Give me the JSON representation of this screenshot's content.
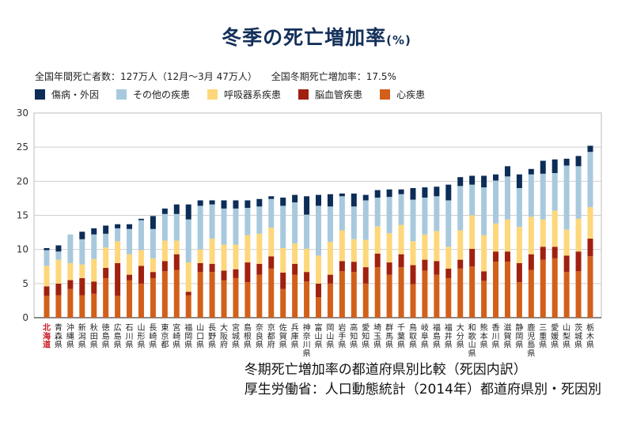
{
  "header": {
    "title": "冬季の死亡増加率",
    "title_unit": "(%)",
    "stat_deaths": "全国年間死亡者数：127万人（12月～3月 47万人）",
    "stat_increase": "全国冬期死亡増加率：17.5%"
  },
  "footer": {
    "line1": "冬期死亡増加率の都道府県別比較（死因内訳）",
    "line2": "厚生労働省：人口動態統計（2014年）都道府県別・死因別"
  },
  "chart_data": {
    "type": "bar",
    "stacked": true,
    "title": "冬季の死亡増加率(%)",
    "xlabel": "",
    "ylabel": "",
    "ylim": [
      0,
      30
    ],
    "yticks": [
      0,
      5,
      10,
      15,
      20,
      25,
      30
    ],
    "grid": true,
    "highlight_category": "北海道",
    "highlight_color": "#c8161d",
    "categories": [
      "北海道",
      "青森県",
      "沖縄県",
      "新潟県",
      "秋田県",
      "徳島県",
      "広島県",
      "石川県",
      "山形県",
      "長崎県",
      "東京都",
      "宮崎県",
      "福岡県",
      "山口県",
      "長野県",
      "大阪府",
      "宮城県",
      "島根県",
      "奈良県",
      "京都府",
      "佐賀県",
      "兵庫県",
      "神奈川県",
      "富山県",
      "岡山県",
      "岩手県",
      "高知県",
      "愛知県",
      "埼玉県",
      "群馬県",
      "千葉県",
      "鳥取県",
      "岐阜県",
      "福島県",
      "福井県",
      "大分県",
      "和歌山県",
      "熊本県",
      "香川県",
      "滋賀県",
      "静岡県",
      "鹿児島県",
      "三重県",
      "愛媛県",
      "山梨県",
      "茨城県",
      "栃木県"
    ],
    "series": [
      {
        "name": "心疾患",
        "color": "#d2601a",
        "values": [
          3.2,
          3.3,
          4.2,
          3.3,
          3.5,
          5.8,
          3.2,
          5.5,
          5.0,
          5.8,
          6.8,
          7.0,
          3.3,
          6.7,
          6.7,
          5.5,
          5.8,
          5.2,
          6.3,
          7.2,
          4.2,
          6.3,
          5.3,
          3.0,
          5.0,
          6.8,
          6.7,
          5.0,
          7.4,
          6.3,
          7.4,
          4.9,
          6.9,
          6.3,
          5.8,
          7.2,
          7.5,
          5.4,
          8.2,
          8.2,
          5.2,
          7.0,
          8.5,
          8.7,
          6.7,
          6.8,
          9.0
        ]
      },
      {
        "name": "脳血管疾患",
        "color": "#a0210f",
        "values": [
          1.4,
          1.7,
          1.3,
          2.5,
          1.8,
          1.5,
          4.8,
          0.8,
          2.6,
          0.9,
          1.5,
          2.3,
          0.5,
          1.3,
          1.2,
          1.4,
          1.3,
          2.9,
          1.6,
          1.8,
          2.4,
          1.6,
          1.4,
          2.0,
          1.3,
          1.5,
          1.5,
          2.4,
          2.0,
          1.8,
          1.9,
          2.8,
          1.6,
          2.0,
          1.4,
          1.3,
          2.6,
          1.4,
          1.5,
          1.5,
          2.8,
          2.3,
          1.9,
          1.7,
          2.4,
          2.9,
          2.6
        ]
      },
      {
        "name": "呼吸器系疾患",
        "color": "#fdd77a",
        "values": [
          3.0,
          3.5,
          2.5,
          2.0,
          3.3,
          3.0,
          3.2,
          3.0,
          2.3,
          2.0,
          3.0,
          2.0,
          4.3,
          2.0,
          3.7,
          3.8,
          3.6,
          4.0,
          4.4,
          4.2,
          3.6,
          3.0,
          3.4,
          4.1,
          4.8,
          4.5,
          3.3,
          4.0,
          4.0,
          4.3,
          4.3,
          3.5,
          3.7,
          4.4,
          3.2,
          4.3,
          4.9,
          5.3,
          4.1,
          4.7,
          5.3,
          5.5,
          4.0,
          5.3,
          3.8,
          4.8,
          4.6
        ]
      },
      {
        "name": "その他の疾患",
        "color": "#a8c9dd",
        "values": [
          2.3,
          1.2,
          4.2,
          3.7,
          3.6,
          2.0,
          1.9,
          3.7,
          4.4,
          4.3,
          3.9,
          3.9,
          6.3,
          6.4,
          5.0,
          5.3,
          5.3,
          4.0,
          4.0,
          4.2,
          6.2,
          6.0,
          5.0,
          7.3,
          5.2,
          5.0,
          4.8,
          5.8,
          4.2,
          5.3,
          4.5,
          6.1,
          5.4,
          5.1,
          6.8,
          6.5,
          4.5,
          7.0,
          6.3,
          6.3,
          5.7,
          6.2,
          6.7,
          5.5,
          9.4,
          7.7,
          8.1
        ]
      },
      {
        "name": "傷病・外因",
        "color": "#0c2d57",
        "values": [
          0.3,
          0.9,
          0.0,
          1.1,
          0.9,
          1.2,
          0.6,
          0.7,
          0.2,
          1.9,
          0.8,
          1.4,
          2.2,
          0.8,
          0.6,
          1.2,
          1.2,
          1.1,
          1.1,
          0.4,
          1.2,
          1.1,
          2.7,
          1.6,
          1.8,
          0.4,
          1.9,
          0.8,
          1.1,
          1.1,
          0.7,
          1.7,
          1.5,
          1.4,
          2.3,
          1.3,
          1.3,
          1.7,
          0.9,
          1.5,
          2.0,
          0.8,
          1.9,
          2.0,
          1.0,
          1.5,
          0.9
        ]
      }
    ]
  }
}
